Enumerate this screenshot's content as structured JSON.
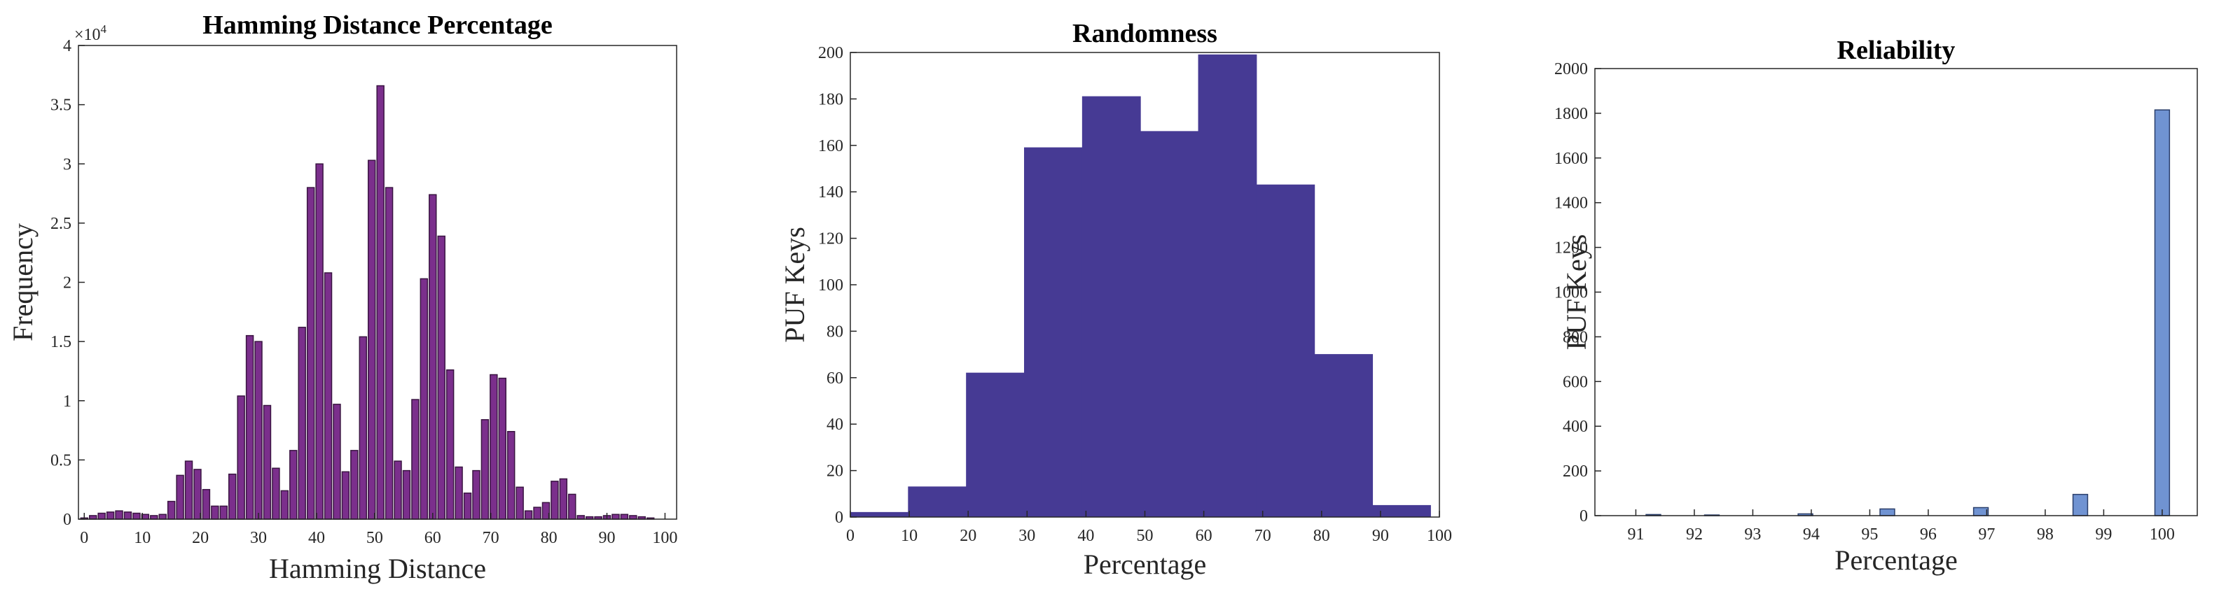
{
  "chart_data": [
    {
      "type": "bar",
      "title": "Hamming Distance Percentage",
      "xlabel": "Hamming Distance",
      "ylabel": "Frequency",
      "y_multiplier": {
        "base": "×10",
        "exponent": "4"
      },
      "color": "#7b2f8c",
      "edgecolor": "#3a1542",
      "x": [
        0,
        1.5,
        3,
        4.5,
        6,
        7.5,
        9,
        10.5,
        12,
        13.5,
        15,
        16.5,
        18,
        19.5,
        21,
        22.5,
        24,
        25.5,
        27,
        28.5,
        30,
        31.5,
        33,
        34.5,
        36,
        37.5,
        39,
        40.5,
        42,
        43.5,
        45,
        46.5,
        48,
        49.5,
        51,
        52.5,
        54,
        55.5,
        57,
        58.5,
        60,
        61.5,
        63,
        64.5,
        66,
        67.5,
        69,
        70.5,
        72,
        73.5,
        75,
        76.5,
        78,
        79.5,
        81,
        82.5,
        84,
        85.5,
        87,
        88.5,
        90,
        91.5,
        93,
        94.5,
        96,
        97.5
      ],
      "values": [
        0.01,
        0.03,
        0.05,
        0.06,
        0.07,
        0.06,
        0.05,
        0.04,
        0.03,
        0.04,
        0.15,
        0.37,
        0.49,
        0.42,
        0.25,
        0.11,
        0.11,
        0.38,
        1.04,
        1.55,
        1.5,
        0.96,
        0.43,
        0.24,
        0.58,
        1.62,
        2.8,
        3.0,
        2.08,
        0.97,
        0.4,
        0.58,
        1.54,
        3.03,
        3.66,
        2.8,
        0.49,
        0.41,
        1.01,
        2.03,
        2.74,
        2.39,
        1.26,
        0.44,
        0.22,
        0.41,
        0.84,
        1.22,
        1.19,
        0.74,
        0.27,
        0.07,
        0.1,
        0.14,
        0.32,
        0.34,
        0.21,
        0.03,
        0.02,
        0.02,
        0.03,
        0.04,
        0.04,
        0.03,
        0.02,
        0.01
      ],
      "xlim": [
        -1,
        102
      ],
      "xticks": [
        0,
        10,
        20,
        30,
        40,
        50,
        60,
        70,
        80,
        90,
        100
      ],
      "ylim": [
        0,
        4
      ],
      "yticks": [
        0,
        0.5,
        1,
        1.5,
        2,
        2.5,
        3,
        3.5,
        4
      ]
    },
    {
      "type": "histogram",
      "title": "Randomness",
      "xlabel": "Percentage",
      "ylabel": "PUF Keys",
      "color": "#463a94",
      "edgecolor": "#463a94",
      "bins": [
        0,
        9.85,
        19.7,
        29.55,
        39.4,
        49.25,
        59.1,
        68.95,
        78.8,
        88.65,
        98.5
      ],
      "values": [
        2,
        13,
        62,
        159,
        181,
        166,
        199,
        143,
        70,
        5
      ],
      "xlim": [
        0,
        100
      ],
      "xticks": [
        0,
        10,
        20,
        30,
        40,
        50,
        60,
        70,
        80,
        90,
        100
      ],
      "ylim": [
        0,
        200
      ],
      "yticks": [
        0,
        20,
        40,
        60,
        80,
        100,
        120,
        140,
        160,
        180,
        200
      ]
    },
    {
      "type": "bar",
      "title": "Reliability",
      "xlabel": "Percentage",
      "ylabel": "PUF Keys",
      "color": "#7093d2",
      "edgecolor": "#2b3f6b",
      "x": [
        91.3,
        92.3,
        93.9,
        95.3,
        96.9,
        98.6,
        100
      ],
      "values": [
        5,
        3,
        8,
        30,
        36,
        95,
        1815
      ],
      "xlim": [
        90.3,
        100.6
      ],
      "xticks": [
        91,
        92,
        93,
        94,
        95,
        96,
        97,
        98,
        99,
        100
      ],
      "ylim": [
        0,
        2000
      ],
      "yticks": [
        0,
        200,
        400,
        600,
        800,
        1000,
        1200,
        1400,
        1600,
        1800,
        2000
      ]
    }
  ]
}
